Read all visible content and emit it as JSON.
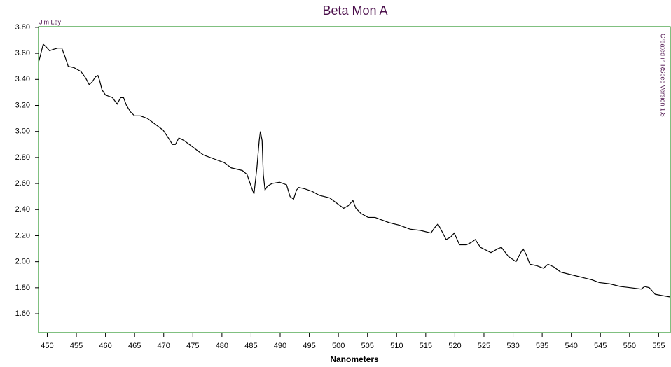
{
  "chart_data": {
    "type": "line",
    "title": "Beta Mon A",
    "x_label": "Nanometers",
    "annotations": [
      "Jim Ley",
      "Created in RSpec Version 1.8"
    ],
    "color": "#000000",
    "x": [
      448.56,
      448.8,
      449.3,
      449.8,
      450.4,
      451,
      451.8,
      452.5,
      453,
      453.6,
      454.6,
      455.8,
      456.6,
      457.2,
      457.7,
      458.3,
      458.7,
      459,
      459.4,
      460,
      461.2,
      462,
      462.6,
      463.1,
      463.6,
      464.3,
      465,
      466,
      467.2,
      468.4,
      469.9,
      470.8,
      471.5,
      472,
      472.6,
      473.5,
      474.4,
      475.6,
      476.8,
      478.6,
      480.4,
      481.6,
      483.5,
      484.3,
      485,
      485.5,
      486,
      486.4,
      486.6,
      486.9,
      487.1,
      487.4,
      487.8,
      488.6,
      489.9,
      491.1,
      491.7,
      492.3,
      492.8,
      493.2,
      494.2,
      495.5,
      496.7,
      498.5,
      499.7,
      500.9,
      501.7,
      502.5,
      503,
      503.9,
      505.1,
      506.3,
      507.5,
      508.7,
      510.5,
      512.3,
      514.1,
      515.9,
      516.5,
      517.1,
      517.7,
      518.5,
      519.3,
      519.9,
      520.8,
      522,
      522.9,
      523.5,
      524.4,
      526.2,
      527.4,
      528,
      529.2,
      530.5,
      531.2,
      531.7,
      532.2,
      532.9,
      534,
      535.2,
      536,
      537,
      538.2,
      540,
      541.8,
      543.6,
      544.8,
      546.6,
      548.4,
      550.2,
      552,
      552.6,
      553.4,
      554.4,
      555.6,
      556.9
    ],
    "values": [
      3.54,
      3.58,
      3.67,
      3.65,
      3.62,
      3.63,
      3.64,
      3.64,
      3.58,
      3.5,
      3.49,
      3.46,
      3.41,
      3.36,
      3.38,
      3.42,
      3.43,
      3.39,
      3.32,
      3.28,
      3.26,
      3.21,
      3.26,
      3.26,
      3.2,
      3.15,
      3.12,
      3.12,
      3.1,
      3.06,
      3.01,
      2.95,
      2.9,
      2.9,
      2.95,
      2.93,
      2.9,
      2.86,
      2.82,
      2.79,
      2.76,
      2.72,
      2.7,
      2.67,
      2.58,
      2.52,
      2.72,
      2.93,
      3.0,
      2.93,
      2.67,
      2.55,
      2.58,
      2.6,
      2.61,
      2.59,
      2.5,
      2.48,
      2.55,
      2.57,
      2.56,
      2.54,
      2.51,
      2.49,
      2.45,
      2.41,
      2.43,
      2.47,
      2.41,
      2.37,
      2.34,
      2.34,
      2.32,
      2.3,
      2.28,
      2.25,
      2.24,
      2.22,
      2.26,
      2.29,
      2.24,
      2.17,
      2.19,
      2.22,
      2.13,
      2.13,
      2.15,
      2.17,
      2.11,
      2.07,
      2.1,
      2.11,
      2.04,
      2.0,
      2.06,
      2.1,
      2.06,
      1.98,
      1.97,
      1.95,
      1.98,
      1.96,
      1.92,
      1.9,
      1.88,
      1.86,
      1.84,
      1.83,
      1.81,
      1.8,
      1.79,
      1.81,
      1.8,
      1.75,
      1.74,
      1.73
    ],
    "xlim": [
      448.5,
      557
    ],
    "ylim": [
      1.455,
      3.805
    ],
    "xticks": [
      450,
      455,
      460,
      465,
      470,
      475,
      480,
      485,
      490,
      495,
      500,
      505,
      510,
      515,
      520,
      525,
      530,
      535,
      540,
      545,
      550,
      555
    ],
    "yticks": [
      {
        "value": 1.6,
        "label": "1.60"
      },
      {
        "value": 1.8,
        "label": "1.80"
      },
      {
        "value": 2.0,
        "label": "2.00"
      },
      {
        "value": 2.2,
        "label": "2.20"
      },
      {
        "value": 2.4,
        "label": "2.40"
      },
      {
        "value": 2.6,
        "label": "2.60"
      },
      {
        "value": 2.8,
        "label": "2.80"
      },
      {
        "value": 3.0,
        "label": "3.00"
      },
      {
        "value": 3.2,
        "label": "3.20"
      },
      {
        "value": 3.4,
        "label": "3.40"
      },
      {
        "value": 3.6,
        "label": "3.60"
      },
      {
        "value": 3.8,
        "label": "3.80"
      }
    ]
  }
}
